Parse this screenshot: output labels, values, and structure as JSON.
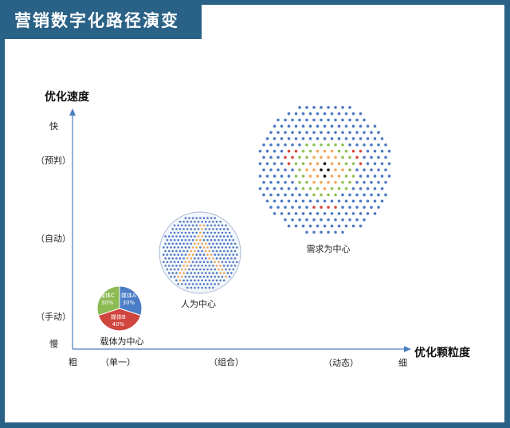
{
  "header": {
    "title": "营销数字化路径演变"
  },
  "colors": {
    "frame": "#2a6186",
    "axis": "#4a7fc0",
    "dot_blue": "#4f79c2",
    "dot_orange": "#f3a75a",
    "dot_red": "#d9463e",
    "dot_green": "#8fbf56",
    "dot_black": "#111111",
    "pie_a": "#4a7dc6",
    "pie_b": "#d1453f",
    "pie_c": "#8dba53"
  },
  "y_axis": {
    "title": "优化速度",
    "top_label": "快",
    "bottom_label": "慢",
    "ticks": [
      "（预判）",
      "（自动）",
      "（手动）"
    ]
  },
  "x_axis": {
    "title": "优化颗粒度",
    "left_label": "粗",
    "right_label": "细",
    "ticks": [
      "（单一）",
      "（组合）",
      "（动态）"
    ]
  },
  "stages": [
    {
      "name": "载体为中心",
      "type": "pie",
      "slices": [
        {
          "label": "媒体A",
          "value": "30%"
        },
        {
          "label": "媒体B",
          "value": "40%"
        },
        {
          "label": "媒体C",
          "value": "30%"
        }
      ]
    },
    {
      "name": "人为中心",
      "type": "dot-circle-with-person-shape"
    },
    {
      "name": "需求为中心",
      "type": "concentric-dot-cluster"
    }
  ],
  "chart_data": {
    "type": "scatter",
    "title": "营销数字化路径演变",
    "xlabel": "优化颗粒度",
    "ylabel": "优化速度",
    "x_ticks": [
      "粗",
      "（单一）",
      "（组合）",
      "（动态）",
      "细"
    ],
    "y_ticks": [
      "慢",
      "（手动）",
      "（自动）",
      "（预判）",
      "快"
    ],
    "points": [
      {
        "label": "载体为中心",
        "x": "（单一）",
        "y": "（手动）",
        "size": "small",
        "pie": [
          {
            "name": "媒体A",
            "value": 30
          },
          {
            "name": "媒体B",
            "value": 40
          },
          {
            "name": "媒体C",
            "value": 30
          }
        ]
      },
      {
        "label": "人为中心",
        "x": "（组合）",
        "y": "（自动）",
        "size": "medium"
      },
      {
        "label": "需求为中心",
        "x": "（动态）",
        "y": "（预判）",
        "size": "large"
      }
    ],
    "grid": false
  }
}
